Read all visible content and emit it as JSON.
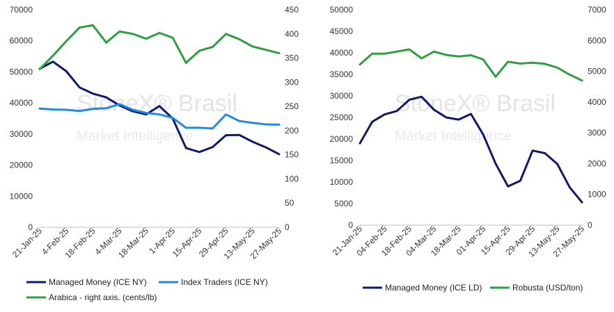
{
  "watermark": {
    "brand": "StoneX",
    "brand_suffix": "Brasil",
    "tagline": "Market Intelligence"
  },
  "chart_data": [
    {
      "type": "line",
      "title": "",
      "x": [
        "21-Jan-25",
        "28-Jan-25",
        "4-Feb-25",
        "11-Feb-25",
        "18-Feb-25",
        "25-Feb-25",
        "4-Mar-25",
        "11-Mar-25",
        "18-Mar-25",
        "25-Mar-25",
        "1-Apr-25",
        "8-Apr-25",
        "15-Apr-25",
        "22-Apr-25",
        "29-Apr-25",
        "6-May-25",
        "13-May-25",
        "20-May-25",
        "27-May-25"
      ],
      "xtick_labels": [
        "21-Jan-25",
        "4-Feb-25",
        "18-Feb-25",
        "4-Mar-25",
        "18-Mar-25",
        "1-Apr-25",
        "15-Apr-25",
        "29-Apr-25",
        "13-May-25",
        "27-May-25"
      ],
      "xtick_every": 2,
      "ylim": [
        0,
        70000
      ],
      "yticks": [
        "0",
        "10000",
        "20000",
        "30000",
        "40000",
        "50000",
        "60000",
        "70000"
      ],
      "y2lim": [
        0,
        450
      ],
      "y2ticks": [
        "0",
        "50",
        "100",
        "150",
        "200",
        "250",
        "300",
        "350",
        "400",
        "450"
      ],
      "series": [
        {
          "name": "Managed Money (ICE NY)",
          "axis": "left",
          "color": "#0d1a6b",
          "values": [
            51000,
            53300,
            50200,
            45000,
            43000,
            41800,
            39200,
            37300,
            36300,
            39000,
            35000,
            25500,
            24200,
            25800,
            29600,
            29700,
            27500,
            25700,
            23500
          ]
        },
        {
          "name": "Index Traders (ICE NY)",
          "axis": "left",
          "color": "#1f8ae6",
          "values": [
            38200,
            37900,
            37800,
            37400,
            38100,
            38300,
            39600,
            37800,
            36800,
            36300,
            35200,
            32000,
            32000,
            31800,
            36300,
            34200,
            33600,
            33100,
            33000
          ]
        },
        {
          "name": "Arabica - right axis. (cents/lb)",
          "axis": "right",
          "color": "#2e9e3e",
          "values": [
            327,
            355,
            385,
            413,
            418,
            382,
            405,
            400,
            390,
            402,
            392,
            340,
            365,
            373,
            400,
            389,
            374,
            367,
            360
          ]
        }
      ],
      "legend": "bottom"
    },
    {
      "type": "line",
      "title": "",
      "x": [
        "21-Jan-25",
        "28-Jan-25",
        "04-Feb-25",
        "11-Feb-25",
        "18-Feb-25",
        "25-Feb-25",
        "04-Mar-25",
        "11-Mar-25",
        "18-Mar-25",
        "25-Mar-25",
        "01-Apr-25",
        "08-Apr-25",
        "15-Apr-25",
        "22-Apr-25",
        "29-Apr-25",
        "06-May-25",
        "13-May-25",
        "20-May-25",
        "27-May-25"
      ],
      "xtick_labels": [
        "21-Jan-25",
        "04-Feb-25",
        "18-Feb-25",
        "04-Mar-25",
        "18-Mar-25",
        "01-Apr-25",
        "15-Apr-25",
        "29-Apr-25",
        "13-May-25",
        "27-May-25"
      ],
      "xtick_every": 2,
      "ylim": [
        0,
        50000
      ],
      "yticks": [
        "0",
        "5000",
        "10000",
        "15000",
        "20000",
        "25000",
        "30000",
        "35000",
        "40000",
        "45000",
        "50000"
      ],
      "y2lim": [
        0,
        7000
      ],
      "y2ticks": [
        "0",
        "1000",
        "2000",
        "3000",
        "4000",
        "5000",
        "6000",
        "7000"
      ],
      "series": [
        {
          "name": "Managed Money (ICE LD)",
          "axis": "left",
          "color": "#0d1a6b",
          "values": [
            19000,
            24000,
            25700,
            26500,
            29100,
            29800,
            26800,
            25000,
            24500,
            25800,
            21000,
            14300,
            9000,
            10300,
            17300,
            16700,
            14200,
            8800,
            5300
          ]
        },
        {
          "name": "Robusta (USD/ton)",
          "axis": "right",
          "color": "#2e9e3e",
          "values": [
            5220,
            5570,
            5570,
            5640,
            5710,
            5420,
            5640,
            5530,
            5480,
            5520,
            5380,
            4820,
            5310,
            5250,
            5280,
            5240,
            5120,
            4890,
            4700
          ]
        }
      ],
      "legend": "bottom"
    }
  ]
}
